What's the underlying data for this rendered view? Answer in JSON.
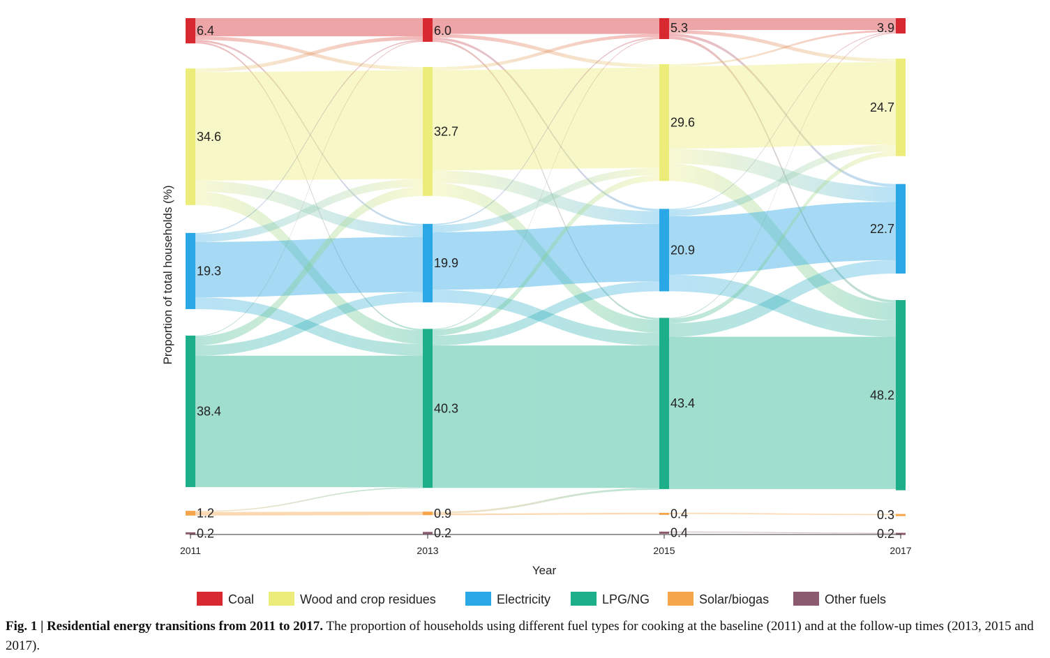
{
  "chart_data": {
    "type": "sankey",
    "xlabel": "Year",
    "ylabel": "Proportion of total households (%)",
    "years": [
      "2011",
      "2013",
      "2015",
      "2017"
    ],
    "categories": [
      {
        "name": "Coal",
        "color": "#d7292f"
      },
      {
        "name": "Wood and crop residues",
        "color": "#ecec7a"
      },
      {
        "name": "Electricity",
        "color": "#2aa8e6"
      },
      {
        "name": "LPG/NG",
        "color": "#1daf8a"
      },
      {
        "name": "Solar/biogas",
        "color": "#f5a54a"
      },
      {
        "name": "Other fuels",
        "color": "#8b5a6f"
      }
    ],
    "values": [
      [
        6.4,
        34.6,
        19.3,
        38.4,
        1.2,
        0.2
      ],
      [
        6.0,
        32.7,
        19.9,
        40.3,
        0.9,
        0.2
      ],
      [
        5.3,
        29.6,
        20.9,
        43.4,
        0.4,
        0.4
      ],
      [
        3.9,
        24.7,
        22.7,
        48.2,
        0.3,
        0.2
      ]
    ],
    "value_labels": [
      [
        "6.4",
        "34.6",
        "19.3",
        "38.4",
        "1.2",
        "0.2"
      ],
      [
        "6.0",
        "32.7",
        "19.9",
        "40.3",
        "0.9",
        "0.2"
      ],
      [
        "5.3",
        "29.6",
        "20.9",
        "43.4",
        "0.4",
        "0.4"
      ],
      [
        "3.9",
        "24.7",
        "22.7",
        "48.2",
        "0.3",
        "0.2"
      ]
    ],
    "flows": [
      [
        [
          0,
          0,
          4.6
        ],
        [
          0,
          1,
          0.9
        ],
        [
          0,
          2,
          0.5
        ],
        [
          0,
          3,
          0.4
        ],
        [
          1,
          0,
          0.9
        ],
        [
          1,
          1,
          27.5
        ],
        [
          1,
          2,
          2.8
        ],
        [
          1,
          3,
          3.4
        ],
        [
          2,
          0,
          0.3
        ],
        [
          2,
          1,
          2.0
        ],
        [
          2,
          2,
          14.0
        ],
        [
          2,
          3,
          3.0
        ],
        [
          3,
          0,
          0.2
        ],
        [
          3,
          1,
          2.3
        ],
        [
          3,
          2,
          2.6
        ],
        [
          3,
          3,
          33.3
        ],
        [
          4,
          3,
          0.3
        ],
        [
          4,
          4,
          0.9
        ]
      ],
      [
        [
          0,
          0,
          4.0
        ],
        [
          0,
          1,
          0.9
        ],
        [
          0,
          2,
          0.6
        ],
        [
          0,
          3,
          0.5
        ],
        [
          1,
          0,
          0.8
        ],
        [
          1,
          1,
          25.4
        ],
        [
          1,
          2,
          3.2
        ],
        [
          1,
          3,
          3.3
        ],
        [
          2,
          0,
          0.3
        ],
        [
          2,
          1,
          1.8
        ],
        [
          2,
          2,
          14.6
        ],
        [
          2,
          3,
          3.2
        ],
        [
          3,
          0,
          0.2
        ],
        [
          3,
          1,
          1.5
        ],
        [
          3,
          2,
          2.5
        ],
        [
          3,
          3,
          36.1
        ],
        [
          4,
          3,
          0.5
        ],
        [
          4,
          4,
          0.4
        ]
      ],
      [
        [
          0,
          0,
          3.0
        ],
        [
          0,
          1,
          0.9
        ],
        [
          0,
          2,
          0.7
        ],
        [
          0,
          3,
          0.7
        ],
        [
          1,
          0,
          0.5
        ],
        [
          1,
          1,
          20.9
        ],
        [
          1,
          2,
          3.8
        ],
        [
          1,
          3,
          4.4
        ],
        [
          2,
          0,
          0.2
        ],
        [
          2,
          1,
          1.7
        ],
        [
          2,
          2,
          14.8
        ],
        [
          2,
          3,
          4.2
        ],
        [
          3,
          0,
          0.2
        ],
        [
          3,
          1,
          1.2
        ],
        [
          3,
          2,
          3.4
        ],
        [
          3,
          3,
          38.6
        ],
        [
          4,
          4,
          0.3
        ],
        [
          5,
          5,
          0.2
        ]
      ]
    ]
  },
  "caption": {
    "bold": "Fig. 1 | Residential energy transitions from 2011 to 2017.",
    "text": " The proportion of households using different fuel types for cooking at the baseline (2011) and at the follow-up times (2013, 2015 and 2017)."
  }
}
